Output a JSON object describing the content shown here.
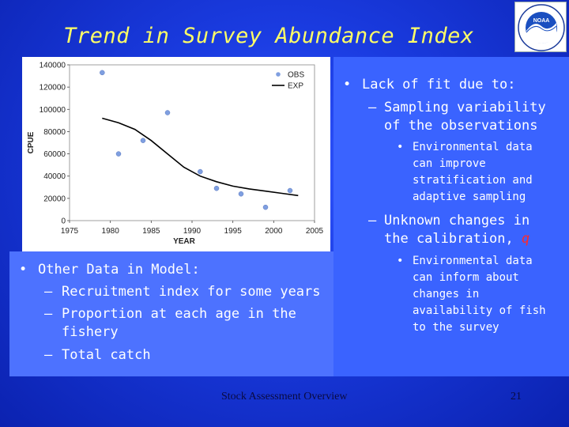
{
  "slide": {
    "title": "Trend in Survey Abundance Index",
    "footer_center": "Stock Assessment Overview",
    "page_number": "21"
  },
  "logo": {
    "text": "NOAA"
  },
  "right_panel": {
    "bullet": "Lack of fit due to:",
    "dash1": [
      "Sampling variability",
      "of the observations"
    ],
    "sub1": [
      "Environmental data",
      "can improve",
      "stratification and",
      "adaptive sampling"
    ],
    "dash2": [
      "Unknown changes in",
      "the calibration, "
    ],
    "dash2_symbol": "q",
    "sub2": [
      "Environmental data",
      "can inform about",
      "changes in",
      "availability of fish",
      "to the survey"
    ]
  },
  "left_panel": {
    "bullet": "Other Data in Model:",
    "items": [
      [
        "Recruitment index for some years"
      ],
      [
        "Proportion at each age in the",
        "fishery"
      ],
      [
        "Total catch"
      ]
    ]
  },
  "colors": {
    "title": "#ffff66",
    "obs_marker": "#7f9fe0",
    "exp_line": "#000000",
    "q_symbol": "#ff2a2a"
  },
  "chart_data": {
    "type": "scatter",
    "title": "",
    "xlabel": "YEAR",
    "ylabel": "CPUE",
    "xlim": [
      1975,
      2005
    ],
    "ylim": [
      0,
      140000
    ],
    "xticks": [
      1975,
      1980,
      1985,
      1990,
      1995,
      2000,
      2005
    ],
    "yticks": [
      0,
      20000,
      40000,
      60000,
      80000,
      100000,
      120000,
      140000
    ],
    "legend": [
      "OBS",
      "EXP"
    ],
    "series": [
      {
        "name": "OBS",
        "kind": "points",
        "x": [
          1979,
          1981,
          1984,
          1987,
          1991,
          1993,
          1996,
          1999,
          2002
        ],
        "y": [
          133000,
          60000,
          72000,
          97000,
          44000,
          29000,
          24000,
          12000,
          27000
        ]
      },
      {
        "name": "EXP",
        "kind": "line",
        "x": [
          1979,
          1981,
          1983,
          1985,
          1987,
          1989,
          1991,
          1993,
          1995,
          1997,
          1999,
          2001,
          2003
        ],
        "y": [
          92000,
          88000,
          82000,
          72000,
          60000,
          48000,
          40000,
          35000,
          31000,
          28500,
          26500,
          24500,
          22500
        ]
      }
    ]
  }
}
